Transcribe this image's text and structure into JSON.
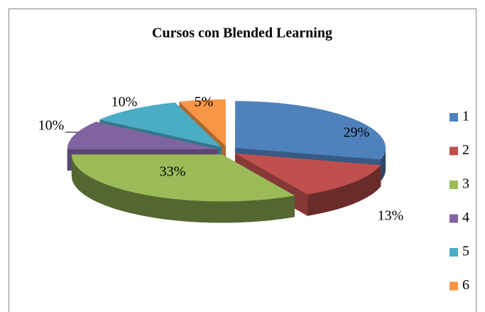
{
  "chart_data": {
    "type": "pie",
    "title": "Cursos con Blended Learning",
    "categories": [
      "1",
      "2",
      "3",
      "4",
      "5",
      "6"
    ],
    "values": [
      29,
      13,
      33,
      10,
      10,
      5
    ],
    "value_labels": [
      "29%",
      "13%",
      "33%",
      "10%",
      "10%",
      "5%"
    ],
    "colors": [
      "#4f81bd",
      "#c0504d",
      "#9bbb59",
      "#8064a2",
      "#4bacc6",
      "#f79646"
    ],
    "legend": "right",
    "three_d": true,
    "exploded": true
  }
}
